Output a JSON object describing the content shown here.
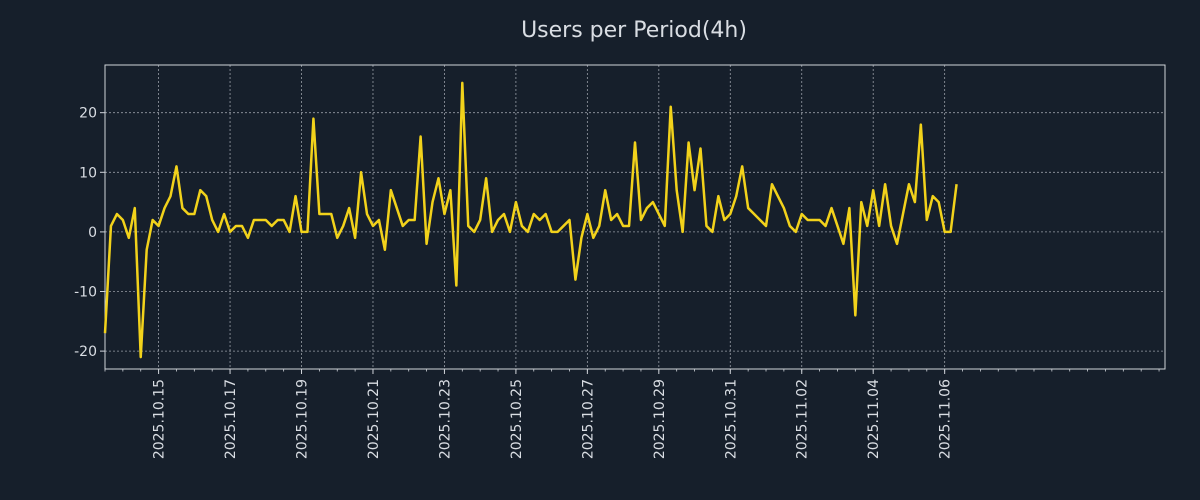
{
  "chart_data": {
    "type": "line",
    "title": "Users per Period(4h)",
    "xlabel": "",
    "ylabel": "",
    "ylim": [
      -23,
      28
    ],
    "yticks": [
      -20,
      -10,
      0,
      10,
      20
    ],
    "xlim": [
      0,
      178
    ],
    "grid": true,
    "colors": {
      "background": "#161f2b",
      "line": "#f2d21b",
      "text": "#d9dde3",
      "grid": "#b8bcc4",
      "axis": "#d0d4da"
    },
    "x_ticks": [
      {
        "pos": 9,
        "label": "2025.10.15"
      },
      {
        "pos": 21,
        "label": "2025.10.17"
      },
      {
        "pos": 33,
        "label": "2025.10.19"
      },
      {
        "pos": 45,
        "label": "2025.10.21"
      },
      {
        "pos": 57,
        "label": "2025.10.23"
      },
      {
        "pos": 69,
        "label": "2025.10.25"
      },
      {
        "pos": 81,
        "label": "2025.10.27"
      },
      {
        "pos": 93,
        "label": "2025.10.29"
      },
      {
        "pos": 105,
        "label": "2025.10.31"
      },
      {
        "pos": 117,
        "label": "2025.11.02"
      },
      {
        "pos": 129,
        "label": "2025.11.04"
      },
      {
        "pos": 141,
        "label": "2025.11.06"
      }
    ],
    "series": [
      {
        "name": "Users",
        "values": [
          -17,
          1,
          3,
          2,
          -1,
          4,
          -21,
          -3,
          2,
          1,
          4,
          6,
          11,
          4,
          3,
          3,
          7,
          6,
          2,
          0,
          3,
          0,
          1,
          1,
          -1,
          2,
          2,
          2,
          1,
          2,
          2,
          0,
          6,
          0,
          0,
          19,
          3,
          3,
          3,
          -1,
          1,
          4,
          -1,
          10,
          3,
          1,
          2,
          -3,
          7,
          4,
          1,
          2,
          2,
          16,
          -2,
          5,
          9,
          3,
          7,
          -9,
          25,
          1,
          0,
          2,
          9,
          0,
          2,
          3,
          0,
          5,
          1,
          0,
          3,
          2,
          3,
          0,
          0,
          1,
          2,
          -8,
          -1,
          3,
          -1,
          1,
          7,
          2,
          3,
          1,
          1,
          15,
          2,
          4,
          5,
          3,
          1,
          21,
          7,
          0,
          15,
          7,
          14,
          1,
          0,
          6,
          2,
          3,
          6,
          11,
          4,
          3,
          2,
          1,
          8,
          6,
          4,
          1,
          0,
          3,
          2,
          2,
          2,
          1,
          4,
          1,
          -2,
          4,
          -14,
          5,
          1,
          7,
          1,
          8,
          1,
          -2,
          3,
          8,
          5,
          18,
          2,
          6,
          5,
          0,
          0,
          8
        ]
      }
    ]
  }
}
